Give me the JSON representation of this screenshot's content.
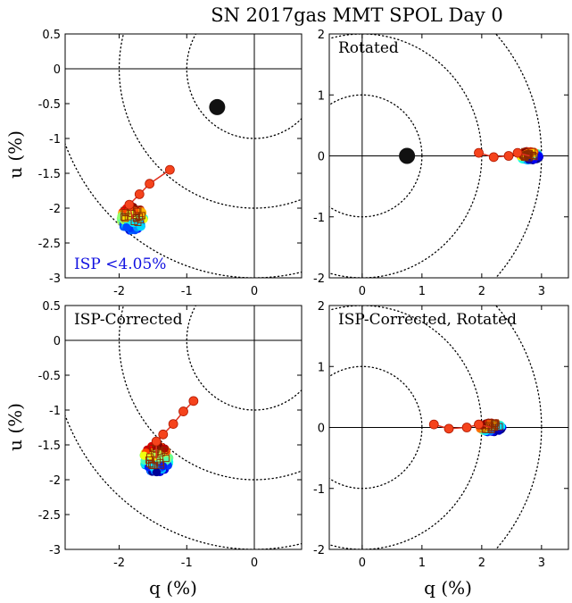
{
  "figure": {
    "title": "SN 2017gas MMT SPOL Day 0",
    "xlabel": "q (%)",
    "ylabel": "u (%)"
  },
  "chart_data": [
    {
      "type": "scatter",
      "annotation": "",
      "isp_label": "ISP <4.05%",
      "isp_color": "#1010e0",
      "xlim": [
        -2.8,
        0.7
      ],
      "ylim": [
        -3,
        0.5
      ],
      "xticks": [
        -2,
        -1,
        0
      ],
      "yticks": [
        0.5,
        0,
        -0.5,
        -1,
        -1.5,
        -2,
        -2.5,
        -3
      ],
      "circle_radii": [
        1,
        2,
        3
      ],
      "isp_point": [
        -0.55,
        -0.55
      ],
      "red_markers": [
        [
          -1.25,
          -1.45
        ],
        [
          -1.55,
          -1.65
        ],
        [
          -1.7,
          -1.8
        ],
        [
          -1.85,
          -1.95
        ]
      ],
      "cluster": {
        "center": [
          -1.8,
          -2.15
        ],
        "spread": [
          0.18,
          0.18
        ]
      }
    },
    {
      "type": "scatter",
      "annotation": "Rotated",
      "isp_label": "",
      "xlim": [
        -0.55,
        3.45
      ],
      "ylim": [
        -2,
        2
      ],
      "xticks": [
        0,
        1,
        2,
        3
      ],
      "yticks": [
        2,
        1,
        0,
        -1,
        -2
      ],
      "circle_radii": [
        1,
        2,
        3
      ],
      "isp_point": [
        0.75,
        0.0
      ],
      "red_markers": [
        [
          1.95,
          0.05
        ],
        [
          2.2,
          -0.02
        ],
        [
          2.45,
          0.0
        ],
        [
          2.6,
          0.05
        ]
      ],
      "cluster": {
        "center": [
          2.8,
          0.0
        ],
        "spread": [
          0.17,
          0.08
        ]
      }
    },
    {
      "type": "scatter",
      "annotation": "ISP-Corrected",
      "isp_label": "",
      "xlim": [
        -2.8,
        0.7
      ],
      "ylim": [
        -3,
        0.5
      ],
      "xticks": [
        -2,
        -1,
        0
      ],
      "yticks": [
        0.5,
        0,
        -0.5,
        -1,
        -1.5,
        -2,
        -2.5,
        -3
      ],
      "circle_radii": [
        1,
        2,
        3
      ],
      "isp_point": null,
      "red_markers": [
        [
          -0.9,
          -0.87
        ],
        [
          -1.05,
          -1.02
        ],
        [
          -1.2,
          -1.2
        ],
        [
          -1.35,
          -1.35
        ],
        [
          -1.45,
          -1.45
        ]
      ],
      "cluster": {
        "center": [
          -1.45,
          -1.7
        ],
        "spread": [
          0.2,
          0.2
        ]
      }
    },
    {
      "type": "scatter",
      "annotation": "ISP-Corrected, Rotated",
      "isp_label": "",
      "xlim": [
        -0.55,
        3.45
      ],
      "ylim": [
        -2,
        2
      ],
      "xticks": [
        0,
        1,
        2,
        3
      ],
      "yticks": [
        2,
        1,
        0,
        -1,
        -2
      ],
      "circle_radii": [
        1,
        2,
        3
      ],
      "isp_point": null,
      "red_markers": [
        [
          1.2,
          0.05
        ],
        [
          1.45,
          -0.02
        ],
        [
          1.75,
          0.0
        ],
        [
          1.95,
          0.05
        ]
      ],
      "cluster": {
        "center": [
          2.15,
          0.0
        ],
        "spread": [
          0.2,
          0.08
        ]
      }
    }
  ]
}
